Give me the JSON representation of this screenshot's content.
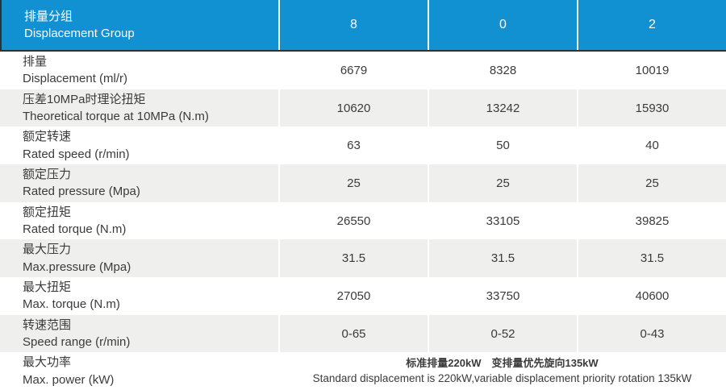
{
  "table": {
    "header": {
      "label_zh": "排量分组",
      "label_en": "Displacement Group",
      "columns": [
        "8",
        "0",
        "2"
      ]
    },
    "rows": [
      {
        "zh": "排量",
        "en": "Displacement (ml/r)",
        "values": [
          "6679",
          "8328",
          "10019"
        ]
      },
      {
        "zh": "压差10MPa时理论扭矩",
        "en": "Theoretical torque at 10MPa (N.m)",
        "values": [
          "10620",
          "13242",
          "15930"
        ]
      },
      {
        "zh": "额定转速",
        "en": "Rated speed (r/min)",
        "values": [
          "63",
          "50",
          "40"
        ]
      },
      {
        "zh": "额定压力",
        "en": "Rated pressure (Mpa)",
        "values": [
          "25",
          "25",
          "25"
        ]
      },
      {
        "zh": "额定扭矩",
        "en": "Rated torque (N.m)",
        "values": [
          "26550",
          "33105",
          "39825"
        ]
      },
      {
        "zh": "最大压力",
        "en": "Max.pressure (Mpa)",
        "values": [
          "31.5",
          "31.5",
          "31.5"
        ]
      },
      {
        "zh": "最大扭矩",
        "en": "Max. torque (N.m)",
        "values": [
          "27050",
          "33750",
          "40600"
        ]
      },
      {
        "zh": "转速范围",
        "en": "Speed range (r/min)",
        "values": [
          "0-65",
          "0-52",
          "0-43"
        ]
      }
    ],
    "footer": {
      "zh": "最大功率",
      "en": "Max. power (kW)",
      "note_zh": "标准排量220kW　变排量优先旋向135kW",
      "note_en": "Standard displacement is 220kW,variable displacement priority rotation 135kW"
    },
    "colors": {
      "header_bg": "#1191d2",
      "header_text": "#ffffff",
      "alt_row_bg": "#efefee",
      "body_text": "#3b3b3b",
      "header_border": "#2c3338"
    }
  }
}
